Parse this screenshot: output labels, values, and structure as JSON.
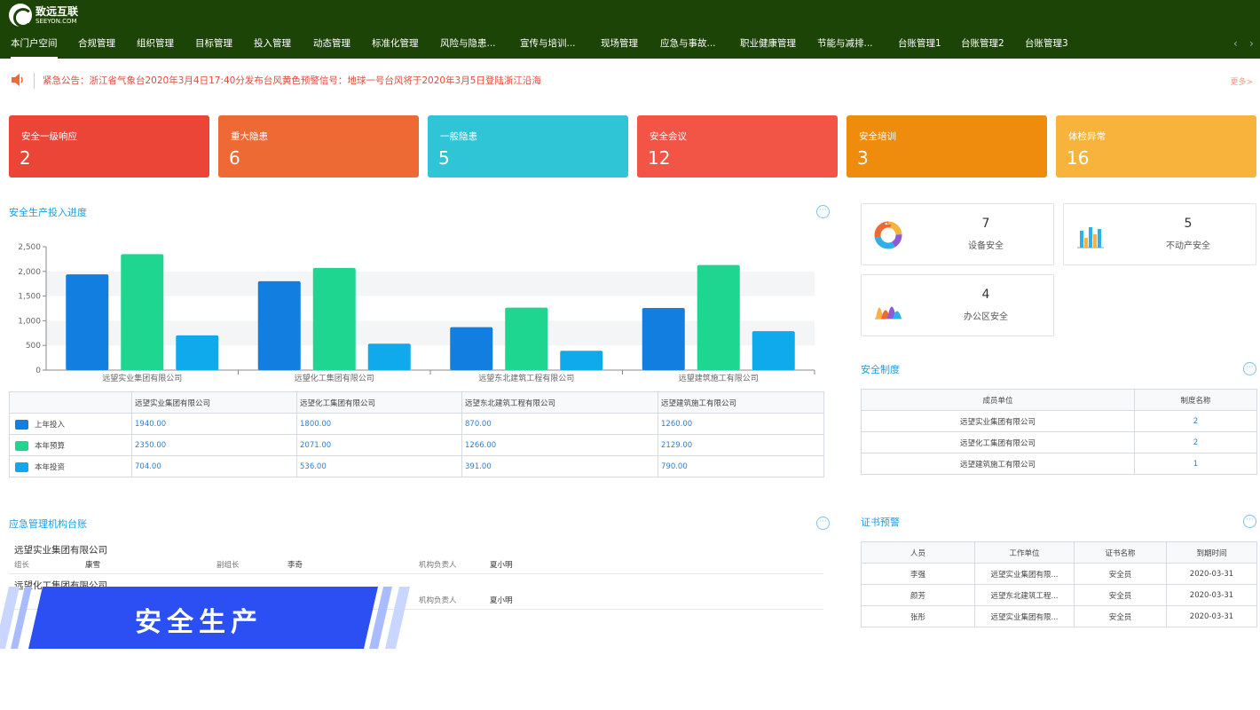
{
  "brand": {
    "cn": "致远互联",
    "en": "SEEYON.COM"
  },
  "nav": {
    "items": [
      "本门户空间",
      "合规管理",
      "组织管理",
      "目标管理",
      "投入管理",
      "动态管理",
      "标准化管理",
      "风险与隐患...",
      "宣传与培训...",
      "现场管理",
      "应急与事故...",
      "职业健康管理",
      "节能与减排...",
      "台账管理1",
      "台账管理2",
      "台账管理3"
    ],
    "prev": "‹",
    "next": "›"
  },
  "notice": {
    "text": "紧急公告：浙江省气象台2020年3月4日17:40分发布台风黄色预警信号：地球一号台风将于2020年3月5日登陆浙江沿海",
    "more": "更多>"
  },
  "stats": [
    {
      "label": "安全一级响应",
      "value": "2",
      "color": "#ea4536"
    },
    {
      "label": "重大隐患",
      "value": "6",
      "color": "#ee6a35"
    },
    {
      "label": "一般隐患",
      "value": "5",
      "color": "#2fc4d6"
    },
    {
      "label": "安全会议",
      "value": "12",
      "color": "#f25545"
    },
    {
      "label": "安全培训",
      "value": "3",
      "color": "#ef8b0d"
    },
    {
      "label": "体检异常",
      "value": "16",
      "color": "#f8b33d"
    }
  ],
  "investment": {
    "title": "安全生产投入进度",
    "more": "···",
    "table_header_empty": ""
  },
  "chart_data": {
    "type": "bar",
    "categories": [
      "远望实业集团有限公司",
      "远望化工集团有限公司",
      "远望东北建筑工程有限公司",
      "远望建筑施工有限公司"
    ],
    "series": [
      {
        "name": "上年投入",
        "values": [
          1940,
          1800,
          870,
          1260
        ],
        "color": "#127ee0"
      },
      {
        "name": "本年预算",
        "values": [
          2350,
          2071,
          1266,
          2129
        ],
        "color": "#1fd690"
      },
      {
        "name": "本年投资",
        "values": [
          704,
          536,
          391,
          790
        ],
        "color": "#0eaaeb"
      }
    ],
    "yticks": [
      "0",
      "500",
      "1,000",
      "1,500",
      "2,000",
      "2,500"
    ],
    "ylim": [
      0,
      2500
    ],
    "title": "",
    "xlabel": "",
    "ylabel": ""
  },
  "investment_table": {
    "rows": [
      {
        "name": "上年投入",
        "values": [
          "1940.00",
          "1800.00",
          "870.00",
          "1260.00"
        ],
        "color": "#127ee0"
      },
      {
        "name": "本年预算",
        "values": [
          "2350.00",
          "2071.00",
          "1266.00",
          "2129.00"
        ],
        "color": "#1fd690"
      },
      {
        "name": "本年投资",
        "values": [
          "704.00",
          "536.00",
          "391.00",
          "790.00"
        ],
        "color": "#0eaaeb"
      }
    ]
  },
  "mini_cards": [
    {
      "count": "7",
      "label": "设备安全",
      "icon": "donut-chart-icon"
    },
    {
      "count": "5",
      "label": "不动产安全",
      "icon": "bar-chart-icon"
    },
    {
      "count": "4",
      "label": "办公区安全",
      "icon": "area-chart-icon"
    }
  ],
  "safety_rules": {
    "title": "安全制度",
    "more": "···",
    "headers": [
      "成员单位",
      "制度名称"
    ],
    "rows": [
      [
        "远望实业集团有限公司",
        "2"
      ],
      [
        "远望化工集团有限公司",
        "2"
      ],
      [
        "远望建筑施工有限公司",
        "1"
      ]
    ]
  },
  "emergency": {
    "title": "应急管理机构台账",
    "more": "···",
    "orgs": [
      {
        "name": "远望实业集团有限公司",
        "leader_label": "组长",
        "leader": "康雪",
        "deputy_label": "副组长",
        "deputy": "李奇",
        "owner_label": "机构负责人",
        "owner": "夏小明"
      },
      {
        "name": "远望化工集团有限公司",
        "owner_label": "机构负责人",
        "owner": "夏小明"
      }
    ]
  },
  "certs": {
    "title": "证书预警",
    "more": "···",
    "headers": [
      "人员",
      "工作单位",
      "证书名称",
      "到期时间"
    ],
    "rows": [
      [
        "李强",
        "远望实业集团有限...",
        "安全员",
        "2020-03-31"
      ],
      [
        "颜芳",
        "远望东北建筑工程...",
        "安全员",
        "2020-03-31"
      ],
      [
        "张彤",
        "远望实业集团有限...",
        "安全员",
        "2020-03-31"
      ]
    ]
  },
  "banner": {
    "title": "安全生产"
  }
}
